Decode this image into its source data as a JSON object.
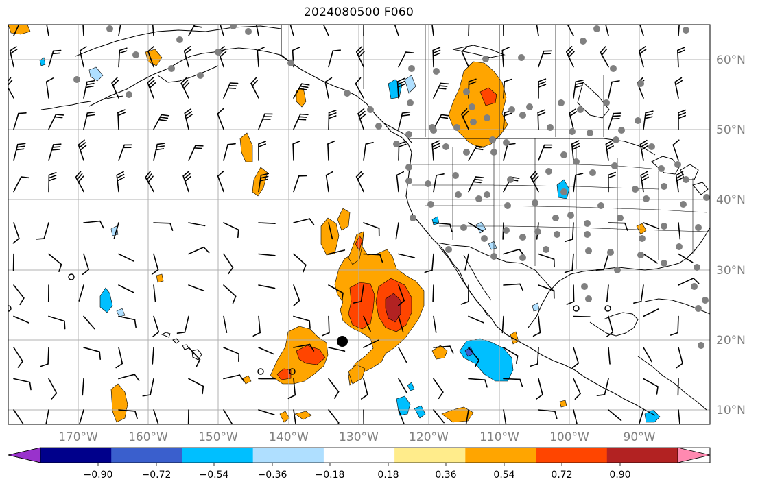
{
  "title": "2024080500 F060",
  "map": {
    "lon_labels": [
      "170°W",
      "160°W",
      "150°W",
      "140°W",
      "130°W",
      "120°W",
      "110°W",
      "100°W",
      "90°W"
    ],
    "lat_labels": [
      "60°N",
      "50°N",
      "40°N",
      "30°N",
      "20°N",
      "10°N"
    ],
    "extent": {
      "lon_min": -180,
      "lon_max": -80,
      "lat_min": 8,
      "lat_max": 65
    },
    "gridlines": true,
    "colors": {
      "coast": "#000000",
      "grid": "#b0b0b0",
      "barb": "#000000",
      "station": "#808080",
      "label": "#808080"
    }
  },
  "colorbar": {
    "ticks": [
      "−0.90",
      "−0.72",
      "−0.54",
      "−0.36",
      "−0.18",
      "0.18",
      "0.36",
      "0.54",
      "0.72",
      "0.90"
    ],
    "colors": [
      "#9932cc",
      "#00008b",
      "#3a5fcd",
      "#00bfff",
      "#afdfff",
      "#ffffff",
      "#ffec8b",
      "#ffa500",
      "#ff4500",
      "#b22222",
      "#ff89b0"
    ],
    "extend": "both"
  },
  "contour_colors": {
    "orange": "#ffa500",
    "red": "#ff4500",
    "darkred": "#b22222",
    "sky": "#00bfff",
    "lightblue": "#afdfff",
    "blue": "#3a5fcd"
  }
}
